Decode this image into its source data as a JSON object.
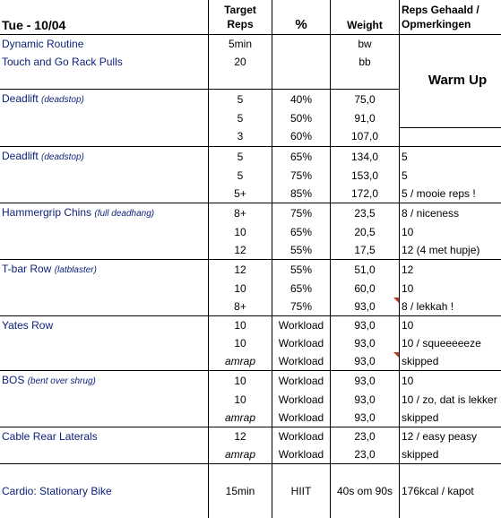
{
  "header": {
    "title": "Tue - 10/04",
    "col_target_reps": "Target\nReps",
    "col_target_reps_line1": "Target",
    "col_target_reps_line2": "Reps",
    "col_percent": "%",
    "col_weight": "Weight",
    "col_reps_done_line1": "Reps Gehaald /",
    "col_reps_done_line2": "Opmerkingen"
  },
  "warm_up_label": "Warm Up",
  "rows": {
    "r1": {
      "exercise": "Dynamic Routine",
      "reps": "5min",
      "pct": "",
      "weight": "bw",
      "note": ""
    },
    "r2": {
      "exercise": "Touch and Go Rack Pulls",
      "reps": "20",
      "pct": "",
      "weight": "bb",
      "note": ""
    },
    "r4": {
      "exercise": "Deadlift",
      "sub": "(deadstop)",
      "reps": "5",
      "pct": "40%",
      "weight": "75,0"
    },
    "r5": {
      "reps": "5",
      "pct": "50%",
      "weight": "91,0"
    },
    "r6": {
      "reps": "3",
      "pct": "60%",
      "weight": "107,0"
    },
    "r7": {
      "exercise": "Deadlift",
      "sub": "(deadstop)",
      "reps": "5",
      "pct": "65%",
      "weight": "134,0",
      "note": "5"
    },
    "r8": {
      "reps": "5",
      "pct": "75%",
      "weight": "153,0",
      "note": "5"
    },
    "r9": {
      "reps": "5+",
      "pct": "85%",
      "weight": "172,0",
      "note": "5 / mooie reps !"
    },
    "r10": {
      "exercise": "Hammergrip Chins",
      "sub": "(full deadhang)",
      "reps": "8+",
      "pct": "75%",
      "weight": "23,5",
      "note": "8 / niceness"
    },
    "r11": {
      "reps": "10",
      "pct": "65%",
      "weight": "20,5",
      "note": "10"
    },
    "r12": {
      "reps": "12",
      "pct": "55%",
      "weight": "17,5",
      "note": "12 (4 met hupje)"
    },
    "r13": {
      "exercise": "T-bar Row",
      "sub": "(latblaster)",
      "reps": "12",
      "pct": "55%",
      "weight": "51,0",
      "note": "12"
    },
    "r14": {
      "reps": "10",
      "pct": "65%",
      "weight": "60,0",
      "note": "10"
    },
    "r15": {
      "reps": "8+",
      "pct": "75%",
      "weight": "93,0",
      "note": "8 / lekkah !"
    },
    "r16": {
      "exercise": "Yates Row",
      "reps": "10",
      "pct": "Workload",
      "weight": "93,0",
      "note": "10"
    },
    "r17": {
      "reps": "10",
      "pct": "Workload",
      "weight": "93,0",
      "note": "10 / squeeeeeze"
    },
    "r18": {
      "reps": "amrap",
      "pct": "Workload",
      "weight": "93,0",
      "note": "skipped"
    },
    "r19": {
      "exercise": "BOS",
      "sub": "(bent over shrug)",
      "reps": "10",
      "pct": "Workload",
      "weight": "93,0",
      "note": "10"
    },
    "r20": {
      "reps": "10",
      "pct": "Workload",
      "weight": "93,0",
      "note": "10 / zo, dat is lekker"
    },
    "r21": {
      "reps": "amrap",
      "pct": "Workload",
      "weight": "93,0",
      "note": "skipped"
    },
    "r22": {
      "exercise": "Cable Rear Laterals",
      "reps": "12",
      "pct": "Workload",
      "weight": "23,0",
      "note": "12 / easy peasy"
    },
    "r23": {
      "reps": "amrap",
      "pct": "Workload",
      "weight": "23,0",
      "note": "skipped"
    },
    "r25": {
      "exercise": "Cardio:  Stationary Bike",
      "reps": "15min",
      "pct": "HIIT",
      "weight": "40s om 90s",
      "note": "176kcal / kapot"
    }
  },
  "colors": {
    "exercise_text": "#0a1e78",
    "comment_flag": "#c0392b",
    "grid": "#000000"
  }
}
